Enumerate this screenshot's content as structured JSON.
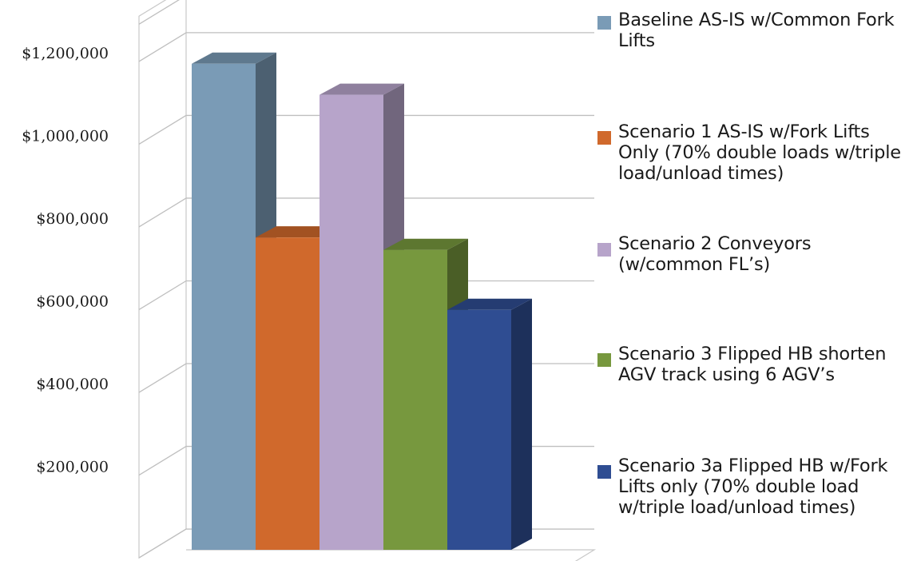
{
  "chart_data": {
    "type": "bar",
    "title": "",
    "xlabel": "",
    "ylabel": "",
    "ylim": [
      0,
      1200000
    ],
    "yticks": [
      200000,
      400000,
      600000,
      800000,
      1000000,
      1200000
    ],
    "ytick_labels": [
      "$200,000",
      "$400,000",
      "$600,000",
      "$800,000",
      "$1,000,000",
      "$1,200,000"
    ],
    "grid": true,
    "three_d": true,
    "legend_position": "right",
    "series": [
      {
        "name": "Baseline AS-IS w/Common Fork Lifts",
        "value": 1175000,
        "color": "#7a9bb6"
      },
      {
        "name": "Scenario 1 AS-IS w/Fork Lifts Only (70% double loads w/triple load/unload times)",
        "value": 755000,
        "color": "#d0692c"
      },
      {
        "name": "Scenario 2 Conveyors (w/common FL’s)",
        "value": 1100000,
        "color": "#b7a4ca"
      },
      {
        "name": "Scenario 3 Flipped HB shorten AGV track using 6 AGV’s",
        "value": 725000,
        "color": "#77983e"
      },
      {
        "name": "Scenario 3a Flipped HB w/Fork Lifts only (70% double load w/triple load/unload times)",
        "value": 580000,
        "color": "#2f4d92"
      }
    ]
  }
}
